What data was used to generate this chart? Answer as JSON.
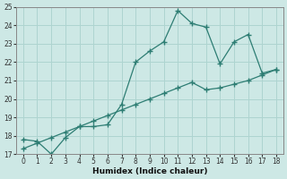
{
  "xlabel": "Humidex (Indice chaleur)",
  "x": [
    0,
    1,
    2,
    3,
    4,
    5,
    6,
    7,
    8,
    9,
    10,
    11,
    12,
    13,
    14,
    15,
    16,
    17,
    18
  ],
  "line1_y": [
    17.8,
    17.7,
    17.0,
    17.9,
    18.5,
    18.5,
    18.6,
    19.7,
    22.0,
    22.6,
    23.1,
    24.8,
    24.1,
    23.9,
    21.9,
    23.1,
    23.5,
    21.4,
    21.6
  ],
  "line2_y": [
    17.3,
    17.6,
    17.9,
    18.2,
    18.5,
    18.8,
    19.1,
    19.4,
    19.7,
    20.0,
    20.3,
    20.6,
    20.9,
    20.5,
    20.6,
    20.8,
    21.0,
    21.3,
    21.6
  ],
  "line_color": "#2d7d73",
  "bg_color": "#cde8e5",
  "grid_color": "#aed4d0",
  "ylim": [
    17,
    25
  ],
  "xlim": [
    -0.5,
    18.5
  ],
  "yticks": [
    17,
    18,
    19,
    20,
    21,
    22,
    23,
    24,
    25
  ],
  "xticks": [
    0,
    1,
    2,
    3,
    4,
    5,
    6,
    7,
    8,
    9,
    10,
    11,
    12,
    13,
    14,
    15,
    16,
    17,
    18
  ]
}
